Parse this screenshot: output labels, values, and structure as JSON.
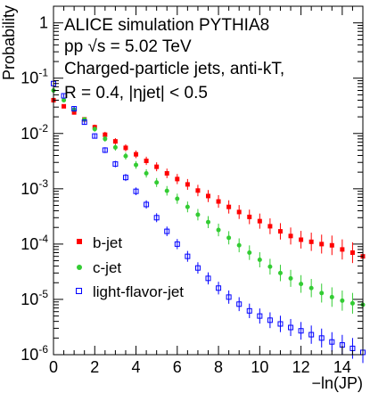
{
  "chart_data": {
    "type": "scatter",
    "title_lines": [
      "ALICE simulation PYTHIA8",
      "pp  √s = 5.02 TeV",
      "Charged-particle jets, anti-kT,",
      "R = 0.4, |ηjet| < 0.5"
    ],
    "xlabel": "−ln(JP)",
    "ylabel": "Probability",
    "xlim": [
      0,
      15
    ],
    "ylim": [
      1e-06,
      2
    ],
    "y_scale": "log",
    "x_ticks": [
      0,
      2,
      4,
      6,
      8,
      10,
      12,
      14
    ],
    "x_tick_labels": [
      "0",
      "2",
      "4",
      "6",
      "8",
      "10",
      "12",
      "14"
    ],
    "y_tick_labels": [
      {
        "mantissa": "10",
        "exp": "-6"
      },
      {
        "mantissa": "10",
        "exp": "-5"
      },
      {
        "mantissa": "10",
        "exp": "-4"
      },
      {
        "mantissa": "10",
        "exp": "-3"
      },
      {
        "mantissa": "10",
        "exp": "-2"
      },
      {
        "mantissa": "10",
        "exp": "-1"
      },
      {
        "mantissa": "1",
        "exp": ""
      }
    ],
    "legend_position": "bottom-left",
    "series": [
      {
        "name": "b-jet",
        "color": "#ff0000",
        "marker": "filled-square",
        "x": [
          0.0,
          0.5,
          1.0,
          1.5,
          2.0,
          2.5,
          3.0,
          3.5,
          4.0,
          4.5,
          5.0,
          5.5,
          6.0,
          6.5,
          7.0,
          7.5,
          8.0,
          8.5,
          9.0,
          9.5,
          10.0,
          10.5,
          11.0,
          11.5,
          12.0,
          12.5,
          13.0,
          13.5,
          14.0,
          14.5,
          15.0
        ],
        "y": [
          0.04,
          0.031,
          0.024,
          0.018,
          0.013,
          0.0095,
          0.0072,
          0.0055,
          0.0042,
          0.0032,
          0.0025,
          0.0019,
          0.0015,
          0.0012,
          0.00093,
          0.00074,
          0.00059,
          0.00047,
          0.00038,
          0.00031,
          0.00026,
          0.00021,
          0.00017,
          0.00014,
          0.00012,
          0.00011,
          0.0001,
          9.5e-05,
          8e-05,
          7e-05,
          6e-05
        ]
      },
      {
        "name": "c-jet",
        "color": "#33cc33",
        "marker": "filled-circle",
        "x": [
          0.0,
          0.5,
          1.0,
          1.5,
          2.0,
          2.5,
          3.0,
          3.5,
          4.0,
          4.5,
          5.0,
          5.5,
          6.0,
          6.5,
          7.0,
          7.5,
          8.0,
          8.5,
          9.0,
          9.5,
          10.0,
          10.5,
          11.0,
          11.5,
          12.0,
          12.5,
          13.0,
          13.5,
          14.0,
          14.5,
          15.0
        ],
        "y": [
          0.06,
          0.04,
          0.027,
          0.018,
          0.012,
          0.008,
          0.0056,
          0.0039,
          0.0027,
          0.0019,
          0.0013,
          0.00092,
          0.00066,
          0.00047,
          0.00034,
          0.00025,
          0.00018,
          0.00013,
          9.5e-05,
          7e-05,
          5.2e-05,
          3.9e-05,
          3e-05,
          2.4e-05,
          1.9e-05,
          1.6e-05,
          1.3e-05,
          1.1e-05,
          9.5e-06,
          8.5e-06,
          8e-06
        ]
      },
      {
        "name": "light-flavor-jet",
        "color": "#0000ff",
        "marker": "open-square",
        "x": [
          0.0,
          0.5,
          1.0,
          1.5,
          2.0,
          2.5,
          3.0,
          3.5,
          4.0,
          4.5,
          5.0,
          5.5,
          6.0,
          6.5,
          7.0,
          7.5,
          8.0,
          8.5,
          9.0,
          9.5,
          10.0,
          10.5,
          11.0,
          11.5,
          12.0,
          12.5,
          13.0,
          13.5,
          14.0,
          14.5,
          15.0
        ],
        "y": [
          0.08,
          0.048,
          0.028,
          0.016,
          0.009,
          0.005,
          0.0028,
          0.0016,
          0.0009,
          0.00052,
          0.0003,
          0.00017,
          0.0001,
          6e-05,
          3.7e-05,
          2.4e-05,
          1.6e-05,
          1.1e-05,
          8.2e-06,
          6.2e-06,
          5e-06,
          4.2e-06,
          3.6e-06,
          3.1e-06,
          2.7e-06,
          2.3e-06,
          2e-06,
          1.7e-06,
          1.5e-06,
          1.3e-06,
          1.1e-06
        ]
      }
    ]
  }
}
